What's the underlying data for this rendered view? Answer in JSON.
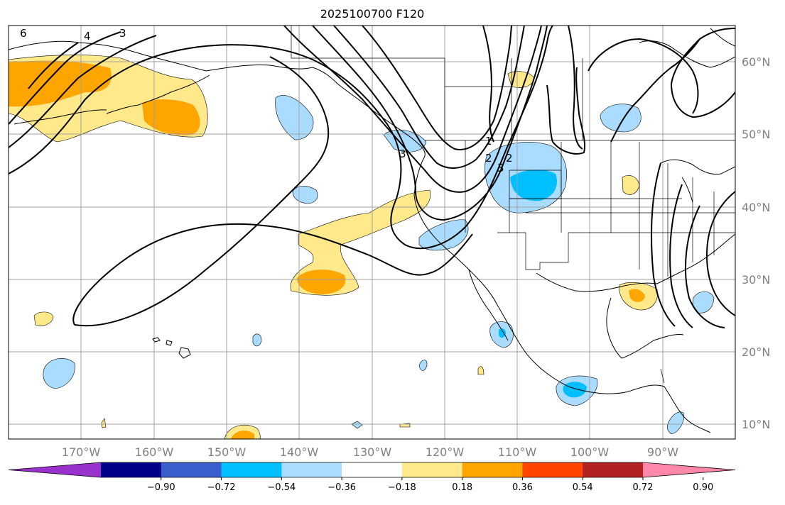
{
  "title": "2025100700 F120",
  "map": {
    "lon_labels": [
      "170°W",
      "160°W",
      "150°W",
      "140°W",
      "130°W",
      "120°W",
      "110°W",
      "100°W",
      "90°W"
    ],
    "lat_labels": [
      "60°N",
      "50°N",
      "40°N",
      "30°N",
      "20°N",
      "10°N"
    ],
    "contour_labels": [
      "6",
      "4",
      "3",
      "3",
      "2",
      "1",
      "2",
      "3"
    ],
    "colors": {
      "light_yellow": "#ffe98a",
      "orange": "#ffa500",
      "red_orange": "#ff4500",
      "light_blue": "#aadcff",
      "sky_blue": "#00bfff",
      "contour": "#000000",
      "grid": "#a0a0a0"
    }
  },
  "colorbar": {
    "ticks": [
      "−0.90",
      "−0.72",
      "−0.54",
      "−0.36",
      "−0.18",
      "0.18",
      "0.36",
      "0.54",
      "0.72",
      "0.90"
    ],
    "colors": [
      "#9932cc",
      "#00008b",
      "#3a5fcd",
      "#00bfff",
      "#aadcff",
      "#ffffff",
      "#ffe98a",
      "#ffa500",
      "#ff4500",
      "#b22222",
      "#ff88aa"
    ]
  }
}
